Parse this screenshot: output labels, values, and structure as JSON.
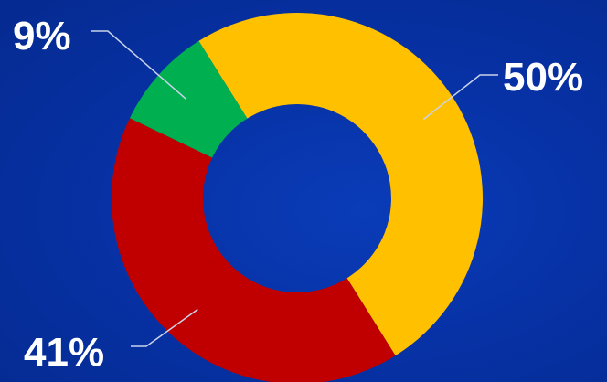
{
  "chart_data": {
    "type": "pie",
    "donut": true,
    "title": "",
    "legend": "none",
    "categories": [
      "",
      "",
      ""
    ],
    "values": [
      50,
      41,
      9
    ],
    "labels": [
      "50%",
      "41%",
      "9%"
    ],
    "colors": [
      "#FFC000",
      "#C00000",
      "#00B050"
    ],
    "start_angle_deg": -32,
    "direction": "clockwise"
  }
}
